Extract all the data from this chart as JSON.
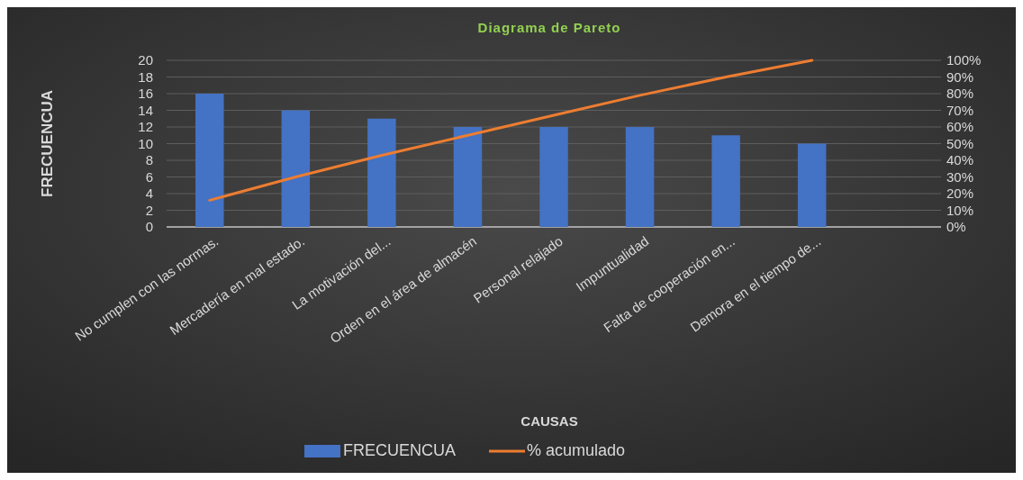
{
  "chart_data": {
    "type": "bar",
    "title": "Diagrama de Pareto",
    "xlabel": "CAUSAS",
    "ylabel": "FRECUENCUA",
    "categories": [
      "No cumplen con las normas.",
      "Mercadería en mal estado.",
      "La motivación del...",
      "Orden en el área de almacén",
      "Personal relajado",
      "Impuntualidad",
      "Falta de cooperación en...",
      "Demora en el tiempo de...",
      null
    ],
    "series": [
      {
        "name": "FRECUENCUA",
        "color": "#4472c4",
        "values": [
          16,
          14,
          13,
          12,
          12,
          12,
          11,
          10,
          null
        ]
      },
      {
        "name": "% acumulado",
        "type": "line",
        "axis": "y2",
        "color": "#ed7d31",
        "values": [
          16,
          30,
          43,
          55,
          67,
          79,
          90,
          100,
          null
        ]
      }
    ],
    "ylim": [
      0,
      20
    ],
    "yticks": [
      0,
      2,
      4,
      6,
      8,
      10,
      12,
      14,
      16,
      18,
      20
    ],
    "y2lim": [
      0,
      100
    ],
    "y2ticks": [
      {
        "value": 0,
        "label": "0%"
      },
      {
        "value": 10,
        "label": "10%"
      },
      {
        "value": 20,
        "label": "20%"
      },
      {
        "value": 30,
        "label": "30%"
      },
      {
        "value": 40,
        "label": "40%"
      },
      {
        "value": 50,
        "label": "50%"
      },
      {
        "value": 60,
        "label": "60%"
      },
      {
        "value": 70,
        "label": "70%"
      },
      {
        "value": 80,
        "label": "80%"
      },
      {
        "value": 90,
        "label": "90%"
      },
      {
        "value": 100,
        "label": "100%"
      }
    ],
    "grid": "y",
    "legend": "bottom",
    "line_style": "solid",
    "marker": "none"
  }
}
